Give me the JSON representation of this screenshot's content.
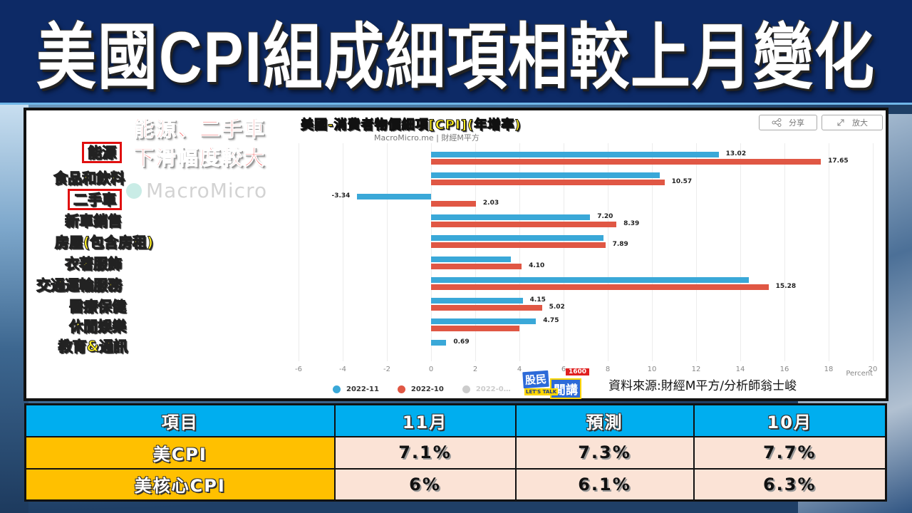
{
  "page": {
    "title": "美國CPI組成細項相較上月變化"
  },
  "chart_panel": {
    "annotation_line1": "能源、二手車",
    "annotation_line2": "下滑幅度較大",
    "share_label": "分享",
    "expand_label": "放大",
    "watermark": "MacroMicro",
    "source": "資料來源:財經M平方/分析師翁士峻",
    "logo": {
      "line1": "股民",
      "line2": "閒講",
      "number": "1600",
      "tagline": "LET'S TALK"
    }
  },
  "chart_data": {
    "type": "bar",
    "orientation": "horizontal",
    "title": "美國-消費者物價細項[CPI](年增率)",
    "subtitle": "MacroMicro.me | 財經M平方",
    "xlabel": "Percent",
    "ylabel": "",
    "xlim": [
      -6,
      20
    ],
    "xticks": [
      -6,
      -4,
      -2,
      0,
      2,
      4,
      6,
      8,
      10,
      12,
      14,
      16,
      18,
      20
    ],
    "grid": true,
    "legend_position": "bottom",
    "categories": [
      "能源",
      "食品和飲料",
      "二手車",
      "新車銷售",
      "房屋(包含房租)",
      "衣著服飾",
      "交通運輸服務",
      "醫療保健",
      "休閒娛樂",
      "教育&通訊"
    ],
    "highlighted_categories": [
      "能源",
      "二手車"
    ],
    "series": [
      {
        "name": "2022-11",
        "color": "#3aa8d8",
        "values": [
          13.02,
          10.35,
          -3.34,
          7.2,
          7.8,
          3.6,
          14.4,
          4.15,
          4.75,
          0.69
        ],
        "labels": [
          "13.02",
          "",
          "-3.34",
          "7.20",
          "",
          "",
          "",
          "4.15",
          "4.75",
          "0.69"
        ]
      },
      {
        "name": "2022-10",
        "color": "#e05744",
        "values": [
          17.65,
          10.57,
          2.03,
          8.39,
          7.89,
          4.1,
          15.28,
          5.02,
          4.0,
          null
        ],
        "labels": [
          "17.65",
          "10.57",
          "2.03",
          "8.39",
          "7.89",
          "4.10",
          "15.28",
          "5.02",
          "",
          ""
        ]
      },
      {
        "name": "2022-0…",
        "color": "#cccccc",
        "hidden": true,
        "values": []
      }
    ]
  },
  "table": {
    "headers": [
      "項目",
      "11月",
      "預測",
      "10月"
    ],
    "rows": [
      {
        "item": "美CPI",
        "values": [
          "7.1%",
          "7.3%",
          "7.7%"
        ]
      },
      {
        "item": "美核心CPI",
        "values": [
          "6%",
          "6.1%",
          "6.3%"
        ]
      }
    ]
  },
  "colors": {
    "title_bg": "#0d2a66",
    "series_nov": "#3aa8d8",
    "series_oct": "#e05744",
    "table_header": "#00aeef",
    "table_rowhead": "#ffc000",
    "table_cell": "#fbe3d6",
    "highlight_box": "#e01010",
    "label_yellow": "#ffee22"
  }
}
